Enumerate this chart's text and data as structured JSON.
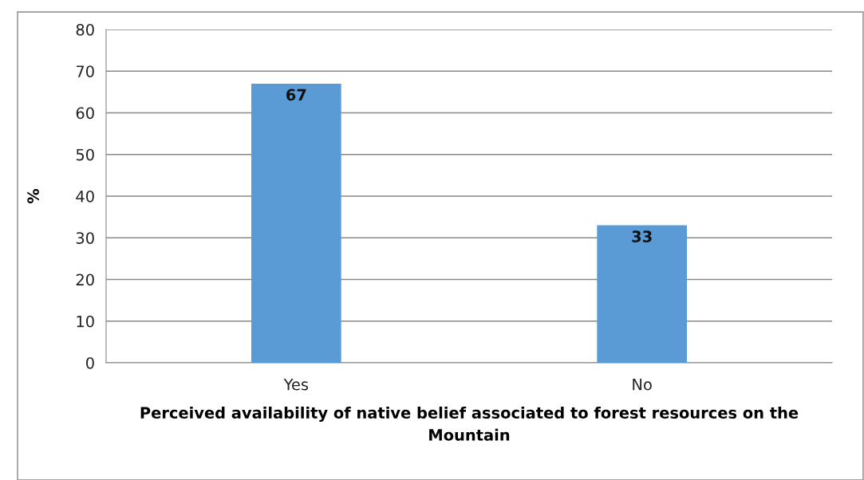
{
  "chart_data": {
    "type": "bar",
    "ylabel": "%",
    "xlabel": "Perceived availability of native belief associated to forest resources on the\nMountain",
    "categories": [
      "Yes",
      "No"
    ],
    "values": [
      67,
      33
    ],
    "color": "#5b9bd5",
    "ylim": [
      0,
      80
    ],
    "yticks": [
      0,
      10,
      20,
      30,
      40,
      50,
      60,
      70,
      80
    ],
    "grid": "y",
    "data_labels": true
  }
}
